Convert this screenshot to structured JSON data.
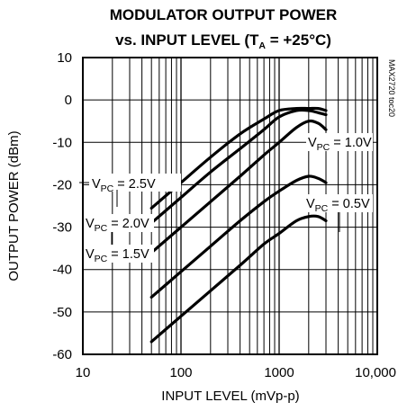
{
  "chart_data": {
    "type": "line",
    "title": "MODULATOR OUTPUT POWER",
    "title_line2_pre": "vs. INPUT LEVEL (T",
    "title_line2_sub": "A",
    "title_line2_post": " = +25°C)",
    "xlabel": "INPUT LEVEL (mVp-p)",
    "ylabel": "OUTPUT POWER (dBm)",
    "side_label": "MAX2720 toc20",
    "x_scale": "log",
    "xlim": [
      10,
      10000
    ],
    "ylim": [
      -60,
      10
    ],
    "x_ticks": [
      10,
      100,
      1000,
      10000
    ],
    "x_tick_labels": [
      "10",
      "100",
      "1000",
      "10,000"
    ],
    "y_ticks": [
      10,
      0,
      -10,
      -20,
      -30,
      -40,
      -50,
      -60
    ],
    "y_tick_labels": [
      "10",
      "0",
      "-10",
      "-20",
      "-30",
      "-40",
      "-50",
      "-60"
    ],
    "grid": true,
    "series": [
      {
        "name": "VPC = 2.5V",
        "label_main": "V",
        "label_sub": "PC",
        "label_rest": " = 2.5V",
        "points": [
          [
            50,
            -25.5
          ],
          [
            100,
            -19.5
          ],
          [
            200,
            -13.5
          ],
          [
            400,
            -8
          ],
          [
            700,
            -4.5
          ],
          [
            1000,
            -2.5
          ],
          [
            1500,
            -2
          ],
          [
            2000,
            -2
          ],
          [
            2500,
            -2
          ],
          [
            3000,
            -2.5
          ]
        ]
      },
      {
        "name": "VPC = 2.0V",
        "label_main": "V",
        "label_sub": "PC",
        "label_rest": " = 2.0V",
        "points": [
          [
            50,
            -29
          ],
          [
            100,
            -23
          ],
          [
            200,
            -17
          ],
          [
            400,
            -11.5
          ],
          [
            700,
            -7
          ],
          [
            1000,
            -4
          ],
          [
            1500,
            -2.5
          ],
          [
            2000,
            -2.5
          ],
          [
            2500,
            -3
          ],
          [
            3000,
            -3.5
          ]
        ]
      },
      {
        "name": "VPC = 1.5V",
        "label_main": "V",
        "label_sub": "PC",
        "label_rest": " = 1.5V",
        "points": [
          [
            50,
            -36
          ],
          [
            100,
            -30
          ],
          [
            200,
            -24
          ],
          [
            400,
            -18
          ],
          [
            700,
            -13
          ],
          [
            1000,
            -10
          ],
          [
            1500,
            -6.5
          ],
          [
            2000,
            -5
          ],
          [
            2500,
            -5.5
          ],
          [
            3000,
            -7
          ]
        ]
      },
      {
        "name": "VPC = 1.0V",
        "label_main": "V",
        "label_sub": "PC",
        "label_rest": " = 1.0V",
        "points": [
          [
            50,
            -46.5
          ],
          [
            100,
            -40.5
          ],
          [
            200,
            -34.5
          ],
          [
            400,
            -28.5
          ],
          [
            700,
            -24
          ],
          [
            1000,
            -21.5
          ],
          [
            1500,
            -19
          ],
          [
            2000,
            -18
          ],
          [
            2500,
            -18.5
          ],
          [
            3000,
            -19.5
          ]
        ]
      },
      {
        "name": "VPC = 0.5V",
        "label_main": "V",
        "label_sub": "PC",
        "label_rest": " = 0.5V",
        "points": [
          [
            50,
            -57
          ],
          [
            100,
            -51
          ],
          [
            200,
            -45
          ],
          [
            400,
            -39
          ],
          [
            700,
            -34
          ],
          [
            1000,
            -31.5
          ],
          [
            1500,
            -28.5
          ],
          [
            2000,
            -27.5
          ],
          [
            2500,
            -27.5
          ],
          [
            3000,
            -28.5
          ]
        ]
      }
    ]
  }
}
